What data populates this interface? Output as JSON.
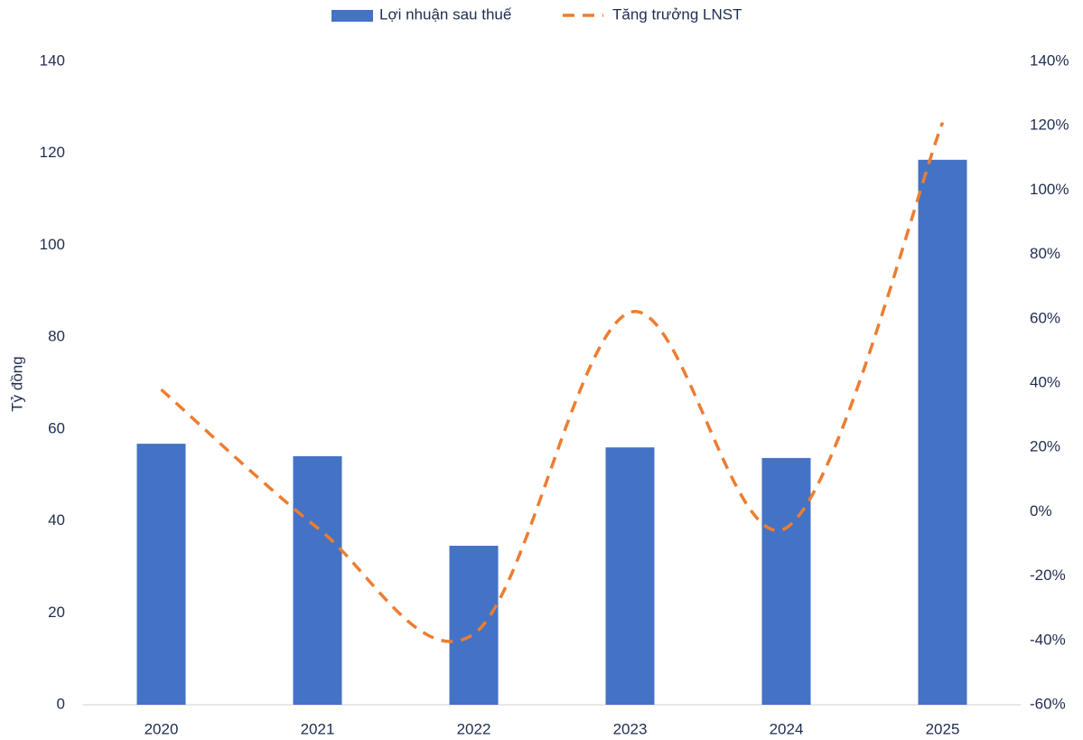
{
  "chart_data": {
    "type": "bar-line",
    "categories": [
      "2020",
      "2021",
      "2022",
      "2023",
      "2024",
      "2025"
    ],
    "ylabel": "Tỷ đồng",
    "series": [
      {
        "name": "Lợi nhuận sau thuế",
        "type": "bar",
        "color": "#4472c4",
        "values": [
          56.8,
          54.1,
          34.6,
          56.0,
          53.7,
          118.6
        ]
      },
      {
        "name": "Tăng trưởng LNST",
        "type": "line",
        "color": "#ed7d31",
        "axis": "y2",
        "dashed": true,
        "smooth": true,
        "values": [
          38,
          -5,
          -38,
          62,
          -5,
          121
        ]
      }
    ],
    "ylim": [
      0,
      140
    ],
    "yticks": [
      0,
      20,
      40,
      60,
      80,
      100,
      120,
      140
    ],
    "y2lim": [
      -60,
      140
    ],
    "y2ticks": [
      {
        "value": -60,
        "label": "-60%"
      },
      {
        "value": -40,
        "label": "-40%"
      },
      {
        "value": -20,
        "label": "-20%"
      },
      {
        "value": 0,
        "label": "0%"
      },
      {
        "value": 20,
        "label": "20%"
      },
      {
        "value": 40,
        "label": "40%"
      },
      {
        "value": 60,
        "label": "60%"
      },
      {
        "value": 80,
        "label": "80%"
      },
      {
        "value": 100,
        "label": "100%"
      },
      {
        "value": 120,
        "label": "120%"
      },
      {
        "value": 140,
        "label": "140%"
      }
    ],
    "legend": "top"
  }
}
